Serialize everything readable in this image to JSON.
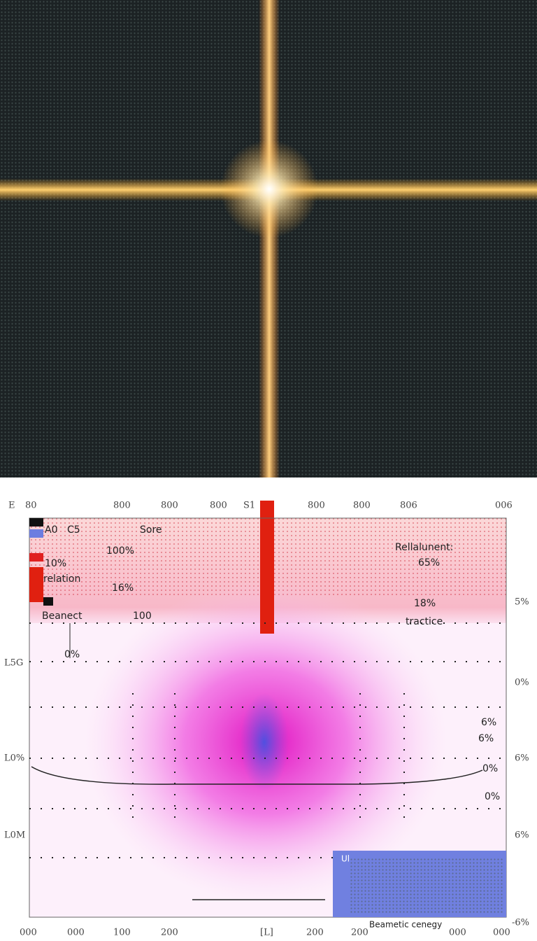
{
  "top_axis": [
    "E",
    "80",
    "800",
    "800",
    "800",
    "S1",
    "800",
    "800",
    "806",
    "006"
  ],
  "legend": {
    "items": [
      "A0",
      "C5",
      "Sore",
      "100%",
      "10%",
      "relation",
      "16%",
      "Beanect",
      "100",
      "0%"
    ]
  },
  "annotations": [
    "Rellalunent:",
    "65%",
    "18%",
    "tractice",
    "6%",
    "6%",
    "0%",
    "0%"
  ],
  "left_axis": [
    "L5G",
    "L0%",
    "L0M"
  ],
  "right_axis": [
    "5%",
    "0%",
    "6%",
    "6%",
    "-6%"
  ],
  "bottom_axis": [
    "000",
    "000",
    "100",
    "200",
    "[L]",
    "200",
    "200",
    "000",
    "000"
  ],
  "inset": {
    "label": "Ul",
    "caption": "Beametic cenegy"
  }
}
